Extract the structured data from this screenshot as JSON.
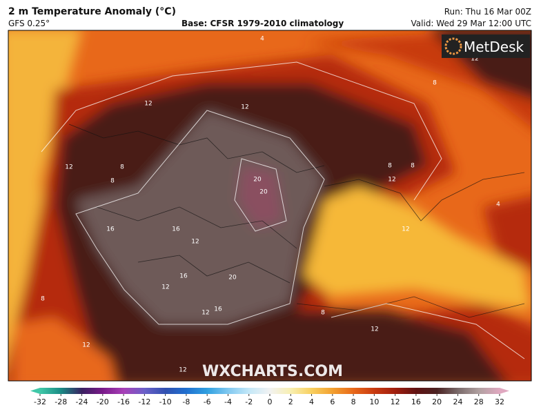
{
  "header": {
    "title": "2 m Temperature Anomaly (°C)",
    "model": "GFS 0.25°",
    "base": "Base: CFSR 1979-2010 climatology",
    "run": "Run: Thu 16 Mar 00Z",
    "valid": "Valid: Wed 29 Mar 12:00 UTC"
  },
  "map": {
    "logo": "MetDesk",
    "watermark": "WXCHARTS.COM",
    "contour_labels": [
      12,
      12,
      12,
      8,
      8,
      12,
      8,
      8,
      20,
      20,
      16,
      12,
      16,
      16,
      12,
      20,
      16,
      12,
      12,
      8,
      12,
      8,
      12,
      4,
      8,
      12,
      4,
      12
    ]
  },
  "colorbar": {
    "ticks": [
      -32,
      -28,
      -24,
      -20,
      -16,
      -12,
      -10,
      -8,
      -6,
      -4,
      -2,
      0,
      2,
      4,
      6,
      8,
      10,
      12,
      16,
      20,
      24,
      28,
      32
    ],
    "colors": [
      "#40c8a8",
      "#1a8a84",
      "#3a2060",
      "#7a1a8a",
      "#a840b8",
      "#6a60c8",
      "#3050b0",
      "#2070d0",
      "#30a0e0",
      "#80c8f0",
      "#c4e8f8",
      "#f2f2f2",
      "#f8efb0",
      "#f8cf5e",
      "#f2a030",
      "#e8681a",
      "#c83a10",
      "#a01e0e",
      "#601212",
      "#4a2222",
      "#7a6a6a",
      "#b0a0a0",
      "#e0a8c0"
    ]
  }
}
